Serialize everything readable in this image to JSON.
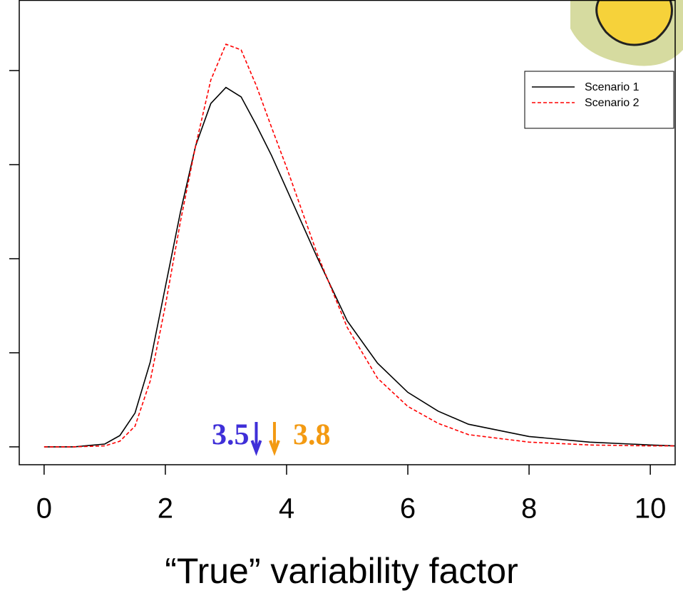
{
  "chart_data": {
    "type": "line",
    "x_label": "“True” variability factor",
    "x": [
      0,
      0.5,
      1,
      1.25,
      1.5,
      1.75,
      2,
      2.25,
      2.5,
      2.75,
      3,
      3.25,
      3.5,
      3.75,
      4,
      4.5,
      5,
      5.5,
      6,
      6.5,
      7,
      8,
      9,
      10,
      10.4
    ],
    "series": [
      {
        "name": "Scenario 1",
        "color": "#000000",
        "dash": false,
        "values": [
          0,
          0,
          0.003,
          0.012,
          0.036,
          0.09,
          0.17,
          0.25,
          0.32,
          0.365,
          0.382,
          0.372,
          0.342,
          0.31,
          0.274,
          0.202,
          0.134,
          0.089,
          0.058,
          0.038,
          0.024,
          0.011,
          0.005,
          0.002,
          0.001
        ]
      },
      {
        "name": "Scenario 2",
        "color": "#ff0000",
        "dash": true,
        "values": [
          0,
          0,
          0.001,
          0.006,
          0.022,
          0.07,
          0.15,
          0.24,
          0.32,
          0.39,
          0.428,
          0.422,
          0.384,
          0.34,
          0.297,
          0.206,
          0.127,
          0.073,
          0.043,
          0.025,
          0.013,
          0.005,
          0.002,
          0.001,
          0.001
        ]
      }
    ],
    "xlim": [
      -0.41,
      10.41
    ],
    "xticks": [
      0,
      2,
      4,
      6,
      8,
      10
    ],
    "ylim": [
      -0.019,
      0.475
    ],
    "yticks": [
      0,
      0.1,
      0.2,
      0.3,
      0.4
    ],
    "legend": "top-right",
    "annotations": [
      {
        "text": "3.5",
        "x": 3.5,
        "color": "#3f2fd8"
      },
      {
        "text": "3.8",
        "x": 3.8,
        "color": "#f39a12"
      }
    ]
  }
}
